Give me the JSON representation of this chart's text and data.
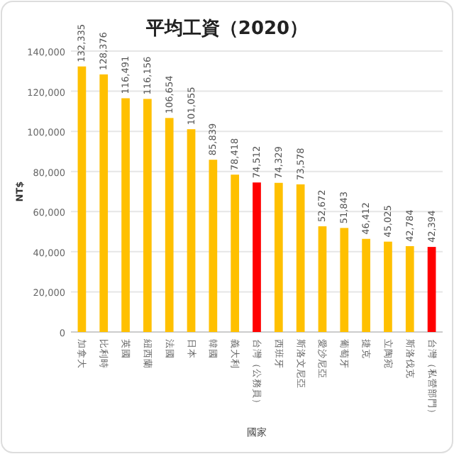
{
  "chart_data": {
    "type": "bar",
    "title": "平均工資（2020）",
    "xlabel": "國家",
    "ylabel": "NT$",
    "categories": [
      "加拿大",
      "比利時",
      "英國",
      "紐西蘭",
      "法國",
      "日本",
      "韓國",
      "義大利",
      "台灣（公務員）",
      "西班牙",
      "斯洛文尼亞",
      "愛沙尼亞",
      "葡萄牙",
      "捷克",
      "立陶宛",
      "斯洛伐克",
      "台灣（私營部門）"
    ],
    "values": [
      132335,
      128376,
      116491,
      116156,
      106654,
      101055,
      85839,
      78418,
      74512,
      74329,
      73578,
      52672,
      51843,
      46412,
      45025,
      42784,
      42394
    ],
    "colors": [
      "#ffc000",
      "#ffc000",
      "#ffc000",
      "#ffc000",
      "#ffc000",
      "#ffc000",
      "#ffc000",
      "#ffc000",
      "#ff0000",
      "#ffc000",
      "#ffc000",
      "#ffc000",
      "#ffc000",
      "#ffc000",
      "#ffc000",
      "#ffc000",
      "#ff0000"
    ],
    "ylim": [
      0,
      140000
    ],
    "yticks": [
      {
        "value": 0,
        "label": "0"
      },
      {
        "value": 20000,
        "label": "20,000"
      },
      {
        "value": 40000,
        "label": "40,000"
      },
      {
        "value": 60000,
        "label": "60,000"
      },
      {
        "value": 80000,
        "label": "80,000"
      },
      {
        "value": 100000,
        "label": "100,000"
      },
      {
        "value": 120000,
        "label": "120,000"
      },
      {
        "value": 140000,
        "label": "140,000"
      }
    ],
    "value_labels": [
      "132,335",
      "128,376",
      "116,491",
      "116,156",
      "106,654",
      "101,055",
      "85,839",
      "78,418",
      "74,512",
      "74,329",
      "73,578",
      "52,672",
      "51,843",
      "46,412",
      "45,025",
      "42,784",
      "42,394"
    ],
    "grid": "y"
  }
}
